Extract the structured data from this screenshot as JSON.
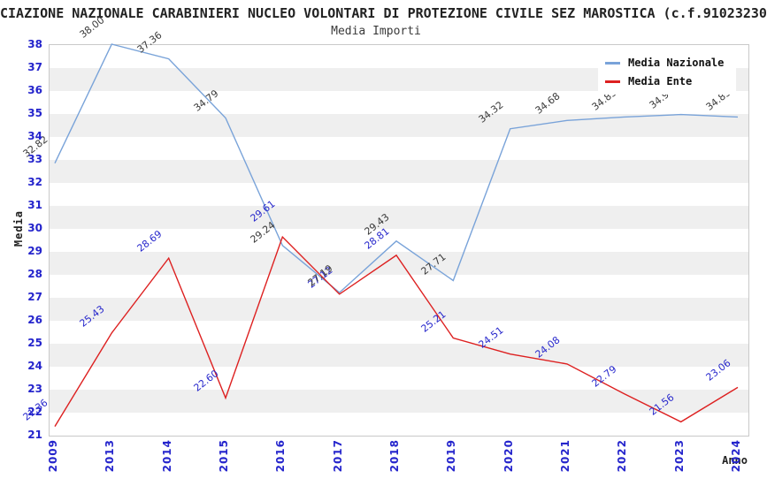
{
  "title": "CIAZIONE NAZIONALE CARABINIERI NUCLEO VOLONTARI DI PROTEZIONE CIVILE SEZ MAROSTICA (c.f.91023230",
  "subtitle": "Media Importi",
  "legend": {
    "items": [
      {
        "label": "Media Nazionale",
        "color": "#79a3d9"
      },
      {
        "label": "Media Ente",
        "color": "#dd2020"
      }
    ]
  },
  "colors": {
    "axis_tick_text": "#2424cc",
    "grid_band": "#efefef",
    "plot_border": "#c9c9c9",
    "national_line": "#79a3d9",
    "ente_line": "#dd2020",
    "national_label_text": "#3a3a3a",
    "ente_label_text": "#2828cc"
  },
  "chart_data": {
    "type": "line",
    "title": "Media Importi",
    "xlabel": "Anno",
    "ylabel": "Media",
    "x": [
      "2009",
      "2013",
      "2014",
      "2015",
      "2016",
      "2017",
      "2018",
      "2019",
      "2020",
      "2021",
      "2022",
      "2023",
      "2024"
    ],
    "series": [
      {
        "name": "Media Nazionale",
        "color": "#79a3d9",
        "label_color": "#3a3a3a",
        "values": [
          32.82,
          38.0,
          37.36,
          34.79,
          29.24,
          27.19,
          29.43,
          27.71,
          34.32,
          34.68,
          34.83,
          34.94,
          34.83
        ]
      },
      {
        "name": "Media Ente",
        "color": "#dd2020",
        "label_color": "#2828cc",
        "values": [
          21.36,
          25.43,
          28.69,
          22.6,
          29.61,
          27.12,
          28.81,
          25.21,
          24.51,
          24.08,
          22.79,
          21.56,
          23.06
        ]
      }
    ],
    "ylim": [
      21,
      38
    ],
    "yticks": [
      21,
      22,
      23,
      24,
      25,
      26,
      27,
      28,
      29,
      30,
      31,
      32,
      33,
      34,
      35,
      36,
      37,
      38
    ],
    "grid": "alternating horizontal bands, gray on even-floored intervals",
    "legend_position": "top-right inside plot"
  }
}
